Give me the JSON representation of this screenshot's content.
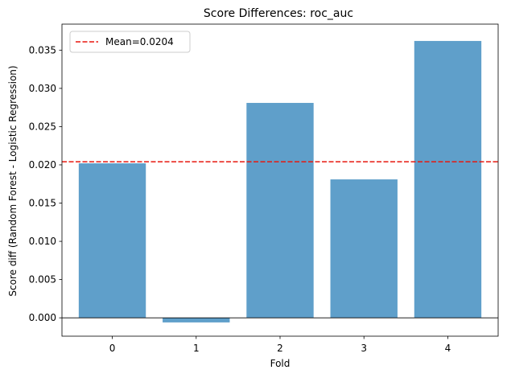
{
  "chart_data": {
    "type": "bar",
    "title": "Score Differences: roc_auc",
    "xlabel": "Fold",
    "ylabel": "Score diff (Random Forest - Logistic Regression)",
    "categories": [
      "0",
      "1",
      "2",
      "3",
      "4"
    ],
    "values": [
      0.0202,
      -0.0006,
      0.0281,
      0.0181,
      0.0362
    ],
    "ylim": [
      -0.0024,
      0.0384
    ],
    "yticks": [
      0.0,
      0.005,
      0.01,
      0.015,
      0.02,
      0.025,
      0.03,
      0.035
    ],
    "ytick_labels": [
      "0.000",
      "0.005",
      "0.010",
      "0.015",
      "0.020",
      "0.025",
      "0.030",
      "0.035"
    ],
    "bar_color": "#5f9fca",
    "mean": {
      "value": 0.0204,
      "label": "Mean=0.0204",
      "color": "#e8170f",
      "style": "dashed"
    },
    "zero_line": true,
    "legend_placement": "top-left",
    "grid": false
  }
}
